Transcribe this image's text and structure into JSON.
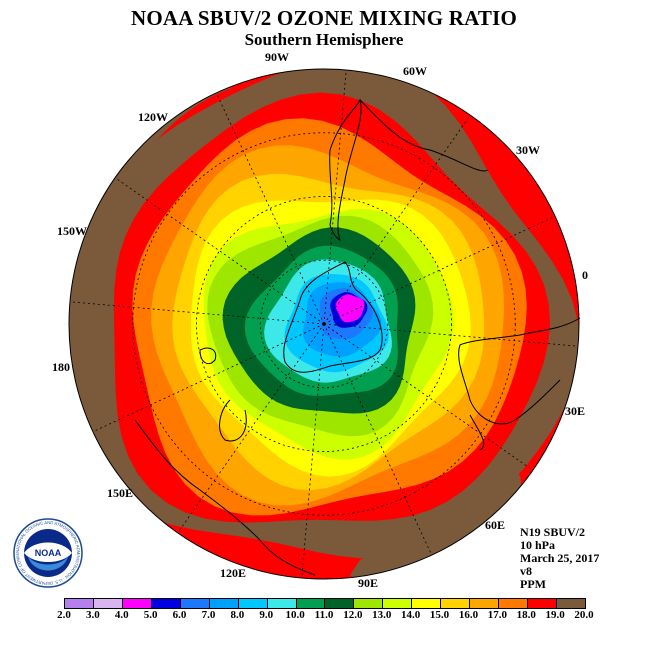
{
  "title": "NOAA SBUV/2 OZONE MIXING RATIO",
  "subtitle": "Southern Hemisphere",
  "logo": {
    "text": "NOAA",
    "ring_text": "NATIONAL OCEANIC AND ATMOSPHERIC ADMINISTRATION · U.S. DEPARTMENT OF COMMERCE"
  },
  "longitude_labels": [
    {
      "text": "90W",
      "name": "lon-label-90w"
    },
    {
      "text": "60W",
      "name": "lon-label-60w"
    },
    {
      "text": "120W",
      "name": "lon-label-120w"
    },
    {
      "text": "30W",
      "name": "lon-label-30w"
    },
    {
      "text": "150W",
      "name": "lon-label-150w"
    },
    {
      "text": "0",
      "name": "lon-label-0"
    },
    {
      "text": "180",
      "name": "lon-label-180"
    },
    {
      "text": "30E",
      "name": "lon-label-30e"
    },
    {
      "text": "150E",
      "name": "lon-label-150e"
    },
    {
      "text": "60E",
      "name": "lon-label-60e"
    },
    {
      "text": "120E",
      "name": "lon-label-120e"
    },
    {
      "text": "90E",
      "name": "lon-label-90e"
    }
  ],
  "info": {
    "satellite": "N19 SBUV/2",
    "level": "10 hPa",
    "date": "March 25, 2017",
    "version": "v8",
    "units": "PPM"
  },
  "colorbar": {
    "labels": [
      "2.0",
      "3.0",
      "4.0",
      "5.0",
      "6.0",
      "7.0",
      "8.0",
      "9.0",
      "10.0",
      "11.0",
      "12.0",
      "13.0",
      "14.0",
      "15.0",
      "16.0",
      "17.0",
      "18.0",
      "19.0",
      "20.0"
    ],
    "colors": [
      "#b67ff0",
      "#d8b4f0",
      "#ff00ff",
      "#0000e0",
      "#1e78ff",
      "#00a0ff",
      "#00c8ff",
      "#3ce8e8",
      "#00a050",
      "#006428",
      "#9ee600",
      "#ccff00",
      "#ffff00",
      "#ffd200",
      "#ffa500",
      "#ff7800",
      "#ff0000",
      "#7a5a3a"
    ]
  },
  "ozone_levels_ppm": [
    19.5,
    18.5,
    17.5,
    16.5,
    15.5,
    14.5,
    13.5,
    12.5,
    11.5,
    10.5,
    9.5,
    8.5,
    7.5,
    6.5,
    5.5,
    4.5
  ]
}
